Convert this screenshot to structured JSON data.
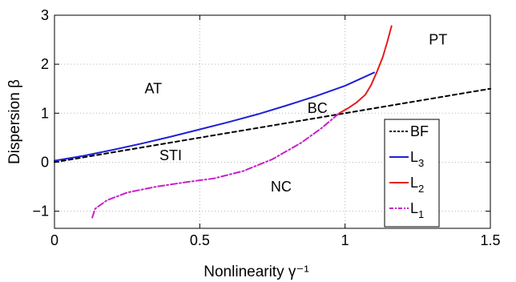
{
  "chart_data": {
    "type": "line",
    "title": "",
    "xlabel": "Nonlinearity γ⁻¹",
    "ylabel": "Dispersion β",
    "xlim": [
      0,
      1.5
    ],
    "ylim": [
      -1.35,
      3
    ],
    "xticks": [
      {
        "value": 0,
        "label": "0"
      },
      {
        "value": 0.5,
        "label": "0.5"
      },
      {
        "value": 1,
        "label": "1"
      },
      {
        "value": 1.5,
        "label": "1.5"
      }
    ],
    "yticks": [
      {
        "value": -1,
        "label": "−1"
      },
      {
        "value": 0,
        "label": "0"
      },
      {
        "value": 1,
        "label": "1"
      },
      {
        "value": 2,
        "label": "2"
      },
      {
        "value": 3,
        "label": "3"
      }
    ],
    "grid": true,
    "legend_position": "right",
    "series": [
      {
        "key": "bf",
        "name": "BF",
        "color": "#000000",
        "dash": "dashed",
        "x": [
          0,
          0.25,
          0.5,
          0.75,
          1.0,
          1.25,
          1.5
        ],
        "y": [
          0,
          0.25,
          0.5,
          0.75,
          1.0,
          1.25,
          1.5
        ]
      },
      {
        "key": "l3",
        "name": "L3",
        "name_main": "L",
        "name_sub": "3",
        "color": "#1f1fd6",
        "dash": "solid",
        "x": [
          0,
          0.1,
          0.2,
          0.3,
          0.4,
          0.5,
          0.6,
          0.7,
          0.8,
          0.9,
          1.0,
          1.1
        ],
        "y": [
          0.03,
          0.13,
          0.25,
          0.38,
          0.52,
          0.67,
          0.82,
          0.98,
          1.16,
          1.35,
          1.56,
          1.83
        ]
      },
      {
        "key": "l2",
        "name": "L2",
        "name_main": "L",
        "name_sub": "2",
        "color": "#e61c1c",
        "dash": "solid",
        "x": [
          0.98,
          1.01,
          1.04,
          1.07,
          1.09,
          1.11,
          1.13,
          1.145,
          1.16
        ],
        "y": [
          1.0,
          1.1,
          1.22,
          1.38,
          1.58,
          1.85,
          2.15,
          2.45,
          2.78
        ]
      },
      {
        "key": "l1",
        "name": "L1",
        "name_main": "L",
        "name_sub": "1",
        "color": "#c81ec8",
        "dash": "dashdot",
        "x": [
          0.13,
          0.14,
          0.18,
          0.25,
          0.35,
          0.45,
          0.55,
          0.65,
          0.75,
          0.85,
          0.92,
          0.98
        ],
        "y": [
          -1.13,
          -0.95,
          -0.78,
          -0.62,
          -0.5,
          -0.41,
          -0.33,
          -0.18,
          0.06,
          0.4,
          0.7,
          1.0
        ]
      }
    ],
    "regions": [
      {
        "label": "AT",
        "x": 0.34,
        "y": 1.5
      },
      {
        "label": "PT",
        "x": 1.32,
        "y": 2.5
      },
      {
        "label": "BC",
        "x": 0.905,
        "y": 1.1
      },
      {
        "label": "STI",
        "x": 0.4,
        "y": 0.14
      },
      {
        "label": "NC",
        "x": 0.78,
        "y": -0.5
      }
    ]
  }
}
